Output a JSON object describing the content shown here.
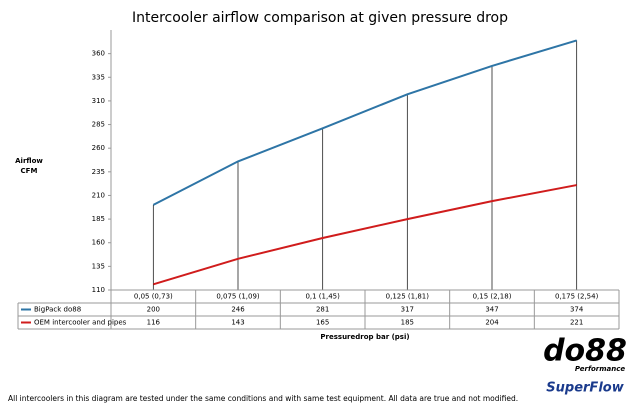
{
  "chart_data": {
    "type": "line",
    "title": "Intercooler airflow comparison at given pressure drop",
    "y_label": "Airflow CFM",
    "x_label": "Pressuredrop bar (psi)",
    "categories": [
      "0,05 (0,73)",
      "0,075 (1,09)",
      "0,1 (1,45)",
      "0,125 (1,81)",
      "0,15 (2,18)",
      "0,175 (2,54)"
    ],
    "series": [
      {
        "name": "BigPack do88",
        "color": "#2e75a6",
        "values": [
          200,
          246,
          281,
          317,
          347,
          374
        ]
      },
      {
        "name": "OEM intercooler and pipes",
        "color": "#d01c1c",
        "values": [
          116,
          143,
          165,
          185,
          204,
          221
        ]
      }
    ],
    "ylim": [
      110,
      385
    ],
    "yticks": [
      110,
      135,
      160,
      185,
      210,
      235,
      260,
      285,
      310,
      335,
      360
    ],
    "grid": false
  },
  "footer": {
    "note": "All intercoolers in this diagram are tested under the same conditions and with same test equipment. All data are true and not modified.",
    "logos": [
      "do88",
      "Performance",
      "SuperFlow"
    ]
  }
}
